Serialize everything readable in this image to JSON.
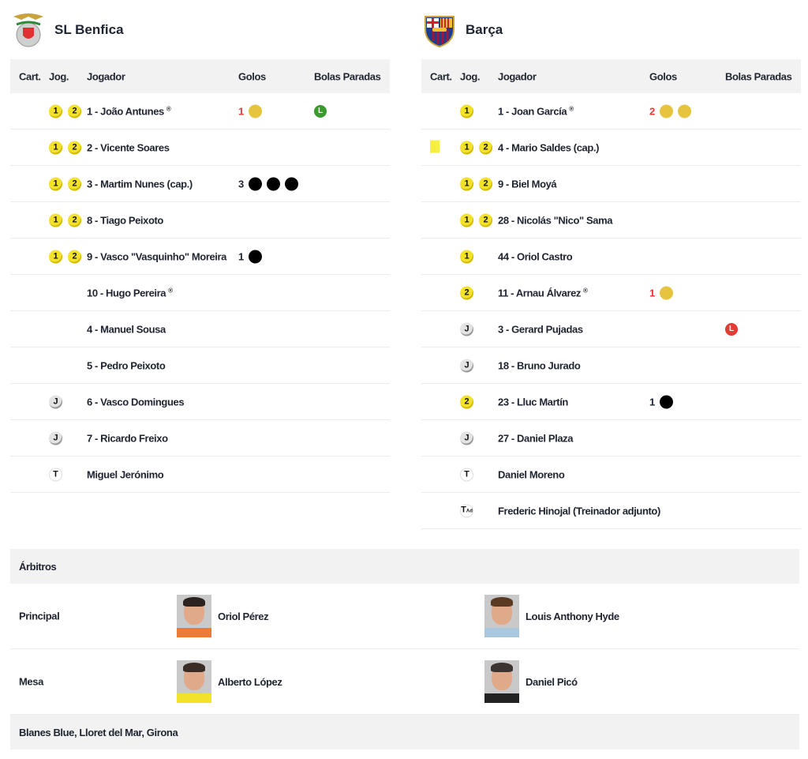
{
  "headers": {
    "cart": "Cart.",
    "jog": "Jog.",
    "name": "Jogador",
    "goals": "Golos",
    "setpieces": "Bolas Paradas"
  },
  "teams": [
    {
      "name": "SL Benfica",
      "crest": "benfica-eagle-crest",
      "players": [
        {
          "name": "1 - João Antunes",
          "gk": true,
          "jog": [
            "1",
            "2"
          ],
          "goals": {
            "count": "1",
            "count_color": "#e53935",
            "balls": [
              "#e6c440"
            ]
          },
          "setpiece": {
            "letter": "L",
            "color": "#3a9a2e"
          }
        },
        {
          "name": "2 - Vicente Soares",
          "jog": [
            "1",
            "2"
          ]
        },
        {
          "name": "3 - Martim Nunes (cap.)",
          "jog": [
            "1",
            "2"
          ],
          "goals": {
            "count": "3",
            "count_color": "#1f2430",
            "balls": [
              "#000",
              "#000",
              "#000"
            ]
          }
        },
        {
          "name": "8 - Tiago Peixoto",
          "jog": [
            "1",
            "2"
          ]
        },
        {
          "name": "9 - Vasco \"Vasquinho\" Moreira",
          "jog": [
            "1",
            "2"
          ],
          "goals": {
            "count": "1",
            "count_color": "#1f2430",
            "balls": [
              "#000"
            ]
          }
        },
        {
          "name": "10 - Hugo Pereira",
          "gk": true,
          "jog": []
        },
        {
          "name": "4 - Manuel Sousa",
          "jog": []
        },
        {
          "name": "5 - Pedro Peixoto",
          "jog": []
        },
        {
          "name": "6 - Vasco Domingues",
          "jog": [
            "J"
          ]
        },
        {
          "name": "7 - Ricardo Freixo",
          "jog": [
            "J"
          ]
        },
        {
          "name": "Miguel Jerónimo",
          "jog": [
            "T"
          ]
        }
      ]
    },
    {
      "name": "Barça",
      "crest": "fc-barcelona-crest",
      "players": [
        {
          "name": "1 - Joan García",
          "gk": true,
          "jog": [
            "1"
          ],
          "goals": {
            "count": "2",
            "count_color": "#e53935",
            "balls": [
              "#e6c440",
              "#e6c440"
            ]
          }
        },
        {
          "name": "4 - Mario Saldes (cap.)",
          "card": "yellow",
          "jog": [
            "1",
            "2"
          ]
        },
        {
          "name": "9 - Biel Moyá",
          "jog": [
            "1",
            "2"
          ]
        },
        {
          "name": "28 - Nicolás \"Nico\" Sama",
          "jog": [
            "1",
            "2"
          ]
        },
        {
          "name": "44 - Oriol Castro",
          "jog": [
            "1"
          ]
        },
        {
          "name": "11 - Arnau Álvarez",
          "gk": true,
          "jog": [
            "2"
          ],
          "goals": {
            "count": "1",
            "count_color": "#e53935",
            "balls": [
              "#e6c440"
            ]
          }
        },
        {
          "name": "3 - Gerard Pujadas",
          "jog": [
            "J"
          ],
          "setpiece": {
            "letter": "L",
            "color": "#e53935"
          }
        },
        {
          "name": "18 - Bruno Jurado",
          "jog": [
            "J"
          ]
        },
        {
          "name": "23 - Lluc Martín",
          "jog": [
            "2"
          ],
          "goals": {
            "count": "1",
            "count_color": "#1f2430",
            "balls": [
              "#000"
            ]
          }
        },
        {
          "name": "27 - Daniel Plaza",
          "jog": [
            "J"
          ]
        },
        {
          "name": "Daniel Moreno",
          "jog": [
            "T"
          ]
        },
        {
          "name": "Frederic Hinojal (Treinador adjunto)",
          "jog": [
            "TAd"
          ]
        }
      ]
    }
  ],
  "gk_mark": "®",
  "referees": {
    "title": "Árbitros",
    "rows": [
      {
        "role": "Principal",
        "refs": [
          {
            "name": "Oriol Pérez",
            "shirt": "#ee7a35",
            "hair": "#2a2320"
          },
          {
            "name": "Louis Anthony Hyde",
            "shirt": "#a9c8e0",
            "hair": "#5a3a22"
          }
        ]
      },
      {
        "role": "Mesa",
        "refs": [
          {
            "name": "Alberto López",
            "shirt": "#f2e22a",
            "hair": "#3a2c24"
          },
          {
            "name": "Daniel Picó",
            "shirt": "#222",
            "hair": "#3b3431"
          }
        ]
      }
    ]
  },
  "venue": "Blanes Blue, Lloret del Mar, Girona"
}
